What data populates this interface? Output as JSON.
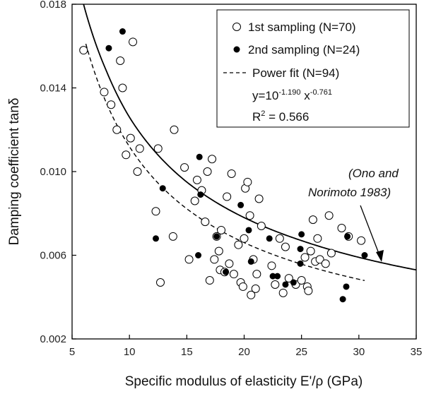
{
  "chart_data": {
    "type": "scatter",
    "xlabel": "Specific modulus of elasticity E'/ρ (GPa)",
    "ylabel": "Damping coefficient tanδ",
    "xlim": [
      5,
      35
    ],
    "ylim": [
      0.002,
      0.018
    ],
    "x_ticks": [
      "5",
      "10",
      "15",
      "20",
      "25",
      "30",
      "35"
    ],
    "y_ticks": [
      "0.002",
      "0.006",
      "0.010",
      "0.014",
      "0.018"
    ],
    "grid": false,
    "legend_position": "top-right",
    "series": [
      {
        "name": "1st sampling (N=70)",
        "marker": "open-circle",
        "points": [
          [
            6.0,
            0.0158
          ],
          [
            7.8,
            0.0138
          ],
          [
            8.4,
            0.0132
          ],
          [
            8.9,
            0.012
          ],
          [
            9.2,
            0.0153
          ],
          [
            9.4,
            0.014
          ],
          [
            9.7,
            0.0108
          ],
          [
            10.1,
            0.0116
          ],
          [
            10.3,
            0.0162
          ],
          [
            10.7,
            0.01
          ],
          [
            10.9,
            0.0111
          ],
          [
            12.3,
            0.0081
          ],
          [
            12.5,
            0.0111
          ],
          [
            12.7,
            0.0047
          ],
          [
            13.8,
            0.0069
          ],
          [
            13.9,
            0.012
          ],
          [
            14.8,
            0.0102
          ],
          [
            15.2,
            0.0058
          ],
          [
            15.7,
            0.0086
          ],
          [
            15.9,
            0.0096
          ],
          [
            16.3,
            0.0091
          ],
          [
            16.6,
            0.0076
          ],
          [
            16.8,
            0.01
          ],
          [
            17.0,
            0.0048
          ],
          [
            17.2,
            0.0106
          ],
          [
            17.4,
            0.0058
          ],
          [
            17.6,
            0.0069
          ],
          [
            17.8,
            0.0062
          ],
          [
            17.9,
            0.0053
          ],
          [
            18.0,
            0.0072
          ],
          [
            18.3,
            0.0052
          ],
          [
            18.5,
            0.0088
          ],
          [
            18.7,
            0.0056
          ],
          [
            18.9,
            0.0099
          ],
          [
            19.1,
            0.0051
          ],
          [
            19.5,
            0.0065
          ],
          [
            19.7,
            0.0047
          ],
          [
            19.9,
            0.0045
          ],
          [
            20.0,
            0.0068
          ],
          [
            20.1,
            0.0092
          ],
          [
            20.3,
            0.0095
          ],
          [
            20.5,
            0.0079
          ],
          [
            20.6,
            0.0041
          ],
          [
            20.8,
            0.0058
          ],
          [
            21.0,
            0.0044
          ],
          [
            21.1,
            0.0051
          ],
          [
            21.3,
            0.0087
          ],
          [
            21.5,
            0.0074
          ],
          [
            22.4,
            0.0055
          ],
          [
            22.7,
            0.0046
          ],
          [
            23.1,
            0.0068
          ],
          [
            23.4,
            0.0042
          ],
          [
            23.6,
            0.0064
          ],
          [
            23.9,
            0.0049
          ],
          [
            24.5,
            0.0046
          ],
          [
            25.0,
            0.0048
          ],
          [
            25.3,
            0.0059
          ],
          [
            25.5,
            0.0045
          ],
          [
            25.6,
            0.0043
          ],
          [
            25.8,
            0.0062
          ],
          [
            26.0,
            0.0077
          ],
          [
            26.2,
            0.0057
          ],
          [
            26.4,
            0.0068
          ],
          [
            26.6,
            0.0058
          ],
          [
            27.1,
            0.0056
          ],
          [
            27.4,
            0.0079
          ],
          [
            27.6,
            0.0061
          ],
          [
            28.5,
            0.0073
          ],
          [
            29.1,
            0.0069
          ],
          [
            30.2,
            0.0067
          ]
        ]
      },
      {
        "name": "2nd sampling (N=24)",
        "marker": "filled-circle",
        "points": [
          [
            8.2,
            0.0159
          ],
          [
            9.4,
            0.0167
          ],
          [
            12.3,
            0.0068
          ],
          [
            12.9,
            0.0092
          ],
          [
            16.1,
            0.0107
          ],
          [
            16.0,
            0.006
          ],
          [
            16.2,
            0.0089
          ],
          [
            17.6,
            0.0069
          ],
          [
            18.4,
            0.0052
          ],
          [
            19.7,
            0.0084
          ],
          [
            20.4,
            0.0072
          ],
          [
            20.6,
            0.0057
          ],
          [
            22.2,
            0.0068
          ],
          [
            22.5,
            0.005
          ],
          [
            22.9,
            0.005
          ],
          [
            23.6,
            0.0046
          ],
          [
            24.9,
            0.0063
          ],
          [
            25.0,
            0.007
          ],
          [
            24.9,
            0.0056
          ],
          [
            28.6,
            0.0039
          ],
          [
            28.9,
            0.0045
          ],
          [
            29.0,
            0.0069
          ],
          [
            30.5,
            0.006
          ],
          [
            24.3,
            0.0047
          ]
        ]
      },
      {
        "name": "Power fit (N=94)",
        "line": "dashed",
        "function": "y = 10^-1.190 x^-0.761",
        "x_range": [
          6.2,
          30.5
        ]
      },
      {
        "name": "Ono and Norimoto 1983",
        "line": "solid",
        "x_range": [
          6.0,
          35
        ],
        "curve_points": [
          [
            6,
            0.018
          ],
          [
            8,
            0.0148
          ],
          [
            10,
            0.0126
          ],
          [
            15,
            0.0095
          ],
          [
            20,
            0.0078
          ],
          [
            25,
            0.0067
          ],
          [
            30,
            0.0059
          ],
          [
            35,
            0.0053
          ]
        ]
      }
    ]
  },
  "legend": {
    "entries": [
      {
        "label": "1st sampling (N=70)"
      },
      {
        "label": "2nd sampling (N=24)"
      },
      {
        "label": "Power fit (N=94)"
      }
    ],
    "equation_prefix": "y=10",
    "equation_exp1": "-1.190",
    "equation_mid": " x",
    "equation_exp2": "-0.761",
    "r2_prefix": "R",
    "r2_sup": "2",
    "r2_value": " = 0.566"
  },
  "annotation": {
    "line1": "(Ono and",
    "line2": "Norimoto 1983)"
  }
}
